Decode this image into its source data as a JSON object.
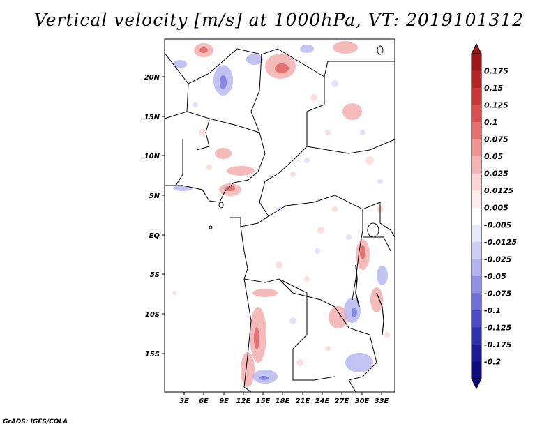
{
  "title": "Vertical velocity [m/s] at 1000hPa, VT: 2019101312",
  "credit": "GrADS: IGES/COLA",
  "map": {
    "lat_labels": [
      "20N",
      "15N",
      "10N",
      "5N",
      "EQ",
      "5S",
      "10S",
      "15S"
    ],
    "lon_labels": [
      "3E",
      "6E",
      "9E",
      "12E",
      "15E",
      "18E",
      "21E",
      "24E",
      "27E",
      "30E",
      "33E"
    ],
    "lon_range": [
      0,
      35
    ],
    "lat_range": [
      -20,
      24
    ]
  },
  "colorbar": {
    "labels": [
      "0.175",
      "0.15",
      "0.125",
      "0.1",
      "0.075",
      "0.05",
      "0.025",
      "0.0125",
      "0.005",
      "-0.005",
      "-0.0125",
      "-0.025",
      "-0.05",
      "-0.075",
      "-0.1",
      "-0.125",
      "-0.175",
      "-0.2"
    ],
    "colors": [
      "#a01616",
      "#b82222",
      "#cc3535",
      "#dc4f4f",
      "#e87070",
      "#f09393",
      "#f6b5b5",
      "#fbd4d4",
      "#feecec",
      "#ffffff",
      "#e8e8fb",
      "#cfcff6",
      "#b2b2f0",
      "#9090e6",
      "#6e6ed8",
      "#4c4cc8",
      "#3030b0",
      "#1a1a98",
      "#0c0c80"
    ]
  }
}
